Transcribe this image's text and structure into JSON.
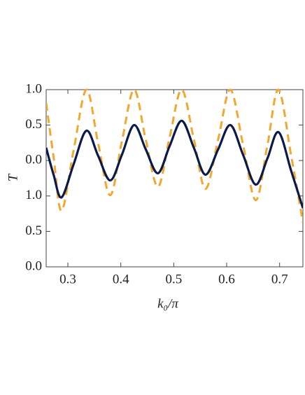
{
  "chart_data": {
    "type": "line",
    "xlabel": "k₀/π",
    "ylabel": "T",
    "x": [
      0.259,
      0.273,
      0.288,
      0.311,
      0.335,
      0.357,
      0.38,
      0.402,
      0.425,
      0.447,
      0.47,
      0.492,
      0.515,
      0.538,
      0.56,
      0.584,
      0.607,
      0.631,
      0.655,
      0.677,
      0.698,
      0.722,
      0.744
    ],
    "series": [
      {
        "color": "#f0a830",
        "dashed": true,
        "axis": "y2",
        "values": [
          0.81,
          0.05,
          -0.71,
          0.15,
          1.0,
          0.25,
          -0.49,
          0.27,
          1.0,
          0.3,
          -0.37,
          0.32,
          1.0,
          0.3,
          -0.4,
          0.3,
          1.0,
          0.22,
          -0.56,
          0.22,
          1.0,
          0.06,
          -0.87
        ]
      },
      {
        "color": "#0a1a4a",
        "dashed": false,
        "axis": "y2",
        "values": [
          0.18,
          -0.2,
          -0.52,
          -0.05,
          0.42,
          0.07,
          -0.28,
          0.08,
          0.5,
          0.16,
          -0.18,
          0.2,
          0.56,
          0.18,
          -0.2,
          0.16,
          0.5,
          0.08,
          -0.34,
          0.03,
          0.4,
          -0.15,
          -0.67
        ]
      }
    ],
    "xlim": [
      0.259,
      0.744
    ],
    "xticks": [
      0.3,
      0.4,
      0.5,
      0.6,
      0.7
    ],
    "ylim": [
      0,
      2.5
    ],
    "yticks": [
      {
        "value": 0,
        "label": "0.0"
      },
      0.5,
      {
        "value": 1,
        "label": "1.0"
      }
    ],
    "y2lim": [
      -1.5,
      1.0
    ],
    "y2ticks": [
      {
        "value": 0,
        "label": "0.0"
      },
      0.5,
      {
        "value": 1,
        "label": "1.0"
      }
    ]
  }
}
